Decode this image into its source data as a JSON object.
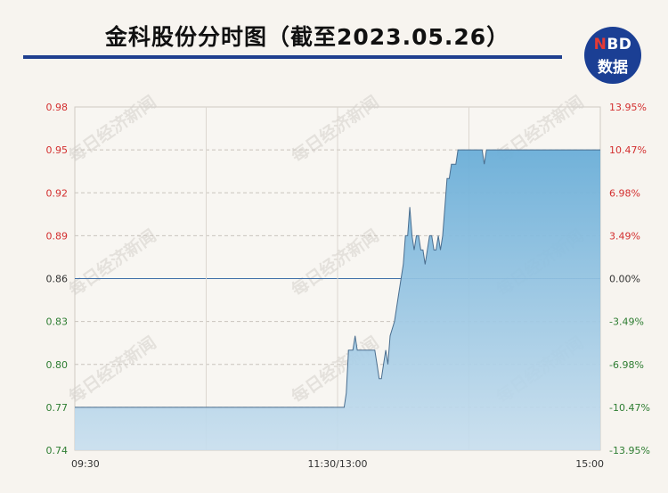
{
  "header": {
    "title": "金科股份分时图（截至2023.05.26）",
    "logo_top_n": "N",
    "logo_top_rest": "BD",
    "logo_bottom": "数据",
    "accent_color": "#1f3f8f"
  },
  "watermark_text": "每日经济新闻",
  "chart_data": {
    "type": "area",
    "title": "金科股份分时图（截至2023.05.26）",
    "reference_price": 0.86,
    "ylim": [
      0.74,
      0.98
    ],
    "y_ticks_left": [
      "0.98",
      "0.95",
      "0.92",
      "0.89",
      "0.86",
      "0.83",
      "0.80",
      "0.77",
      "0.74"
    ],
    "y_ticks_right": [
      "13.95%",
      "10.47%",
      "6.98%",
      "3.49%",
      "0.00%",
      "-3.49%",
      "-6.98%",
      "-10.47%",
      "-13.95%"
    ],
    "x_ticks": [
      "09:30",
      "11:30/13:00",
      "15:00"
    ],
    "session_minutes": 240,
    "up_color": "#d32f2f",
    "down_color": "#2e7d32",
    "line_color": "#4a6e8f",
    "points": [
      [
        0,
        0.77
      ],
      [
        120,
        0.77
      ],
      [
        123,
        0.77
      ],
      [
        124,
        0.78
      ],
      [
        125,
        0.81
      ],
      [
        127,
        0.81
      ],
      [
        128,
        0.82
      ],
      [
        129,
        0.81
      ],
      [
        132,
        0.81
      ],
      [
        137,
        0.81
      ],
      [
        138,
        0.8
      ],
      [
        139,
        0.79
      ],
      [
        140,
        0.79
      ],
      [
        141,
        0.8
      ],
      [
        142,
        0.81
      ],
      [
        143,
        0.8
      ],
      [
        144,
        0.82
      ],
      [
        146,
        0.83
      ],
      [
        148,
        0.85
      ],
      [
        150,
        0.87
      ],
      [
        151,
        0.89
      ],
      [
        152,
        0.89
      ],
      [
        153,
        0.91
      ],
      [
        154,
        0.89
      ],
      [
        155,
        0.88
      ],
      [
        156,
        0.89
      ],
      [
        157,
        0.89
      ],
      [
        158,
        0.88
      ],
      [
        159,
        0.88
      ],
      [
        160,
        0.87
      ],
      [
        161,
        0.88
      ],
      [
        162,
        0.89
      ],
      [
        163,
        0.89
      ],
      [
        164,
        0.88
      ],
      [
        165,
        0.88
      ],
      [
        166,
        0.89
      ],
      [
        167,
        0.88
      ],
      [
        168,
        0.89
      ],
      [
        169,
        0.91
      ],
      [
        170,
        0.93
      ],
      [
        171,
        0.93
      ],
      [
        172,
        0.94
      ],
      [
        174,
        0.94
      ],
      [
        175,
        0.95
      ],
      [
        180,
        0.95
      ],
      [
        186,
        0.95
      ],
      [
        187,
        0.94
      ],
      [
        188,
        0.95
      ],
      [
        200,
        0.95
      ],
      [
        240,
        0.95
      ]
    ]
  }
}
